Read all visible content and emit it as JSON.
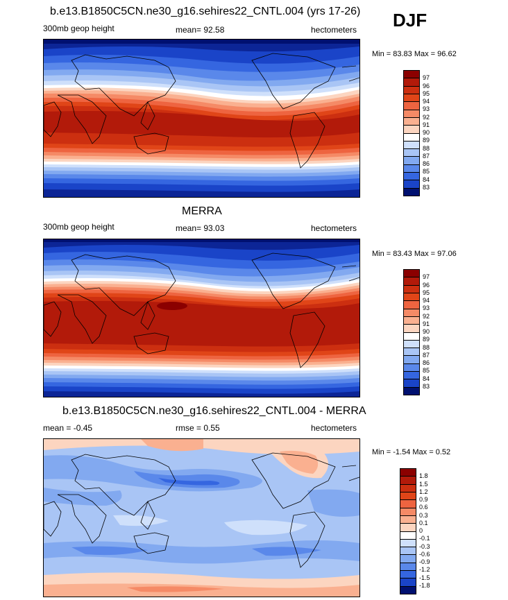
{
  "season": "DJF",
  "units": "hectometers",
  "panels": [
    {
      "title": "b.e13.B1850C5CN.ne30_g16.sehires22_CNTL.004 (yrs 17-26)",
      "left": "300mb geop height",
      "stat": "mean=  92.58",
      "right": "hectometers",
      "minmax": "Min =  83.83 Max =  96.62",
      "levels": [
        "97",
        "96",
        "95",
        "94",
        "93",
        "92",
        "91",
        "90",
        "89",
        "88",
        "87",
        "86",
        "85",
        "84",
        "83"
      ]
    },
    {
      "title": "MERRA",
      "left": "300mb geop height",
      "stat": "mean=  93.03",
      "right": "hectometers",
      "minmax": "Min =  83.43 Max =  97.06",
      "levels": [
        "97",
        "96",
        "95",
        "94",
        "93",
        "92",
        "91",
        "90",
        "89",
        "88",
        "87",
        "86",
        "85",
        "84",
        "83"
      ]
    },
    {
      "title": "b.e13.B1850C5CN.ne30_g16.sehires22_CNTL.004 - MERRA",
      "left": "mean =  -0.45",
      "stat": "rmse =   0.55",
      "right": "hectometers",
      "minmax": "Min =  -1.54 Max =   0.52",
      "levels": [
        "1.8",
        "1.5",
        "1.2",
        "0.9",
        "0.6",
        "0.3",
        "0.1",
        "0",
        "-0.1",
        "-0.3",
        "-0.6",
        "-0.9",
        "-1.2",
        "-1.5",
        "-1.8"
      ]
    }
  ],
  "colors": {
    "diverging16": [
      "#8b0000",
      "#b21a0a",
      "#cc2f10",
      "#e04518",
      "#ee6440",
      "#f58a66",
      "#fab090",
      "#fcd5c0",
      "#ffffff",
      "#cfe0fb",
      "#a9c5f5",
      "#82a9f0",
      "#5a88ea",
      "#3566e0",
      "#1a44c8",
      "#0c2596",
      "#001070"
    ],
    "land_outline": "#000000"
  }
}
